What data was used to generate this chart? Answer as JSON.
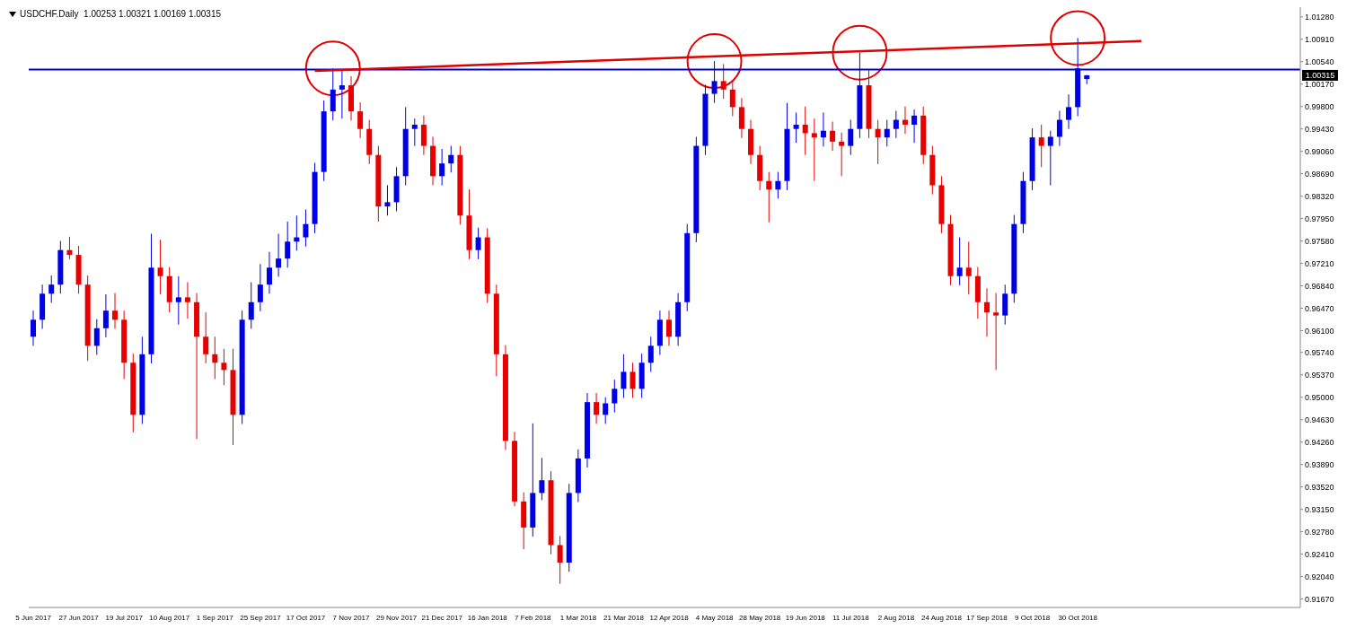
{
  "chart_data": {
    "type": "candlestick",
    "title": "USDCHF.Daily  1.00253 1.00321 1.00169 1.00315",
    "categories": [
      "5 Jun 2017",
      null,
      null,
      null,
      null,
      "27 Jun 2017",
      null,
      null,
      null,
      null,
      "19 Jul 2017",
      null,
      null,
      null,
      null,
      "10 Aug 2017",
      null,
      null,
      null,
      null,
      "1 Sep 2017",
      null,
      null,
      null,
      null,
      "25 Sep 2017",
      null,
      null,
      null,
      null,
      "17 Oct 2017",
      null,
      null,
      null,
      null,
      "7 Nov 2017",
      null,
      null,
      null,
      null,
      "29 Nov 2017",
      null,
      null,
      null,
      null,
      "21 Dec 2017",
      null,
      null,
      null,
      null,
      "16 Jan 2018",
      null,
      null,
      null,
      null,
      "7 Feb 2018",
      null,
      null,
      null,
      null,
      "1 Mar 2018",
      null,
      null,
      null,
      null,
      "21 Mar 2018",
      null,
      null,
      null,
      null,
      "12 Apr 2018",
      null,
      null,
      null,
      null,
      "4 May 2018",
      null,
      null,
      null,
      null,
      "28 May 2018",
      null,
      null,
      null,
      null,
      "19 Jun 2018",
      null,
      null,
      null,
      null,
      "11 Jul 2018",
      null,
      null,
      null,
      null,
      "2 Aug 2018",
      null,
      null,
      null,
      null,
      "24 Aug 2018",
      null,
      null,
      null,
      null,
      "17 Sep 2018",
      null,
      null,
      null,
      null,
      "9 Oct 2018",
      null,
      null,
      null,
      null,
      "30 Oct 2018",
      null,
      null,
      null,
      null,
      null,
      null,
      null,
      null,
      null,
      null,
      null,
      null,
      null,
      null,
      null,
      null,
      null,
      null,
      null,
      null,
      null,
      null,
      null,
      null
    ],
    "ohlc": [
      [
        0.96,
        0.9643,
        0.9585,
        0.9628
      ],
      [
        0.9628,
        0.9686,
        0.9613,
        0.9671
      ],
      [
        0.9671,
        0.9701,
        0.9656,
        0.9686
      ],
      [
        0.9686,
        0.9758,
        0.9671,
        0.9743
      ],
      [
        0.9743,
        0.9765,
        0.9728,
        0.9735
      ],
      [
        0.9735,
        0.975,
        0.9671,
        0.9686
      ],
      [
        0.9686,
        0.9701,
        0.956,
        0.9585
      ],
      [
        0.9585,
        0.9629,
        0.957,
        0.9614
      ],
      [
        0.9614,
        0.967,
        0.9599,
        0.9643
      ],
      [
        0.9643,
        0.9672,
        0.9613,
        0.9628
      ],
      [
        0.9628,
        0.9643,
        0.953,
        0.9557
      ],
      [
        0.9557,
        0.9572,
        0.9442,
        0.9471
      ],
      [
        0.9471,
        0.96,
        0.9456,
        0.9571
      ],
      [
        0.9571,
        0.977,
        0.9556,
        0.9714
      ],
      [
        0.9714,
        0.976,
        0.967,
        0.97
      ],
      [
        0.97,
        0.9715,
        0.964,
        0.9657
      ],
      [
        0.9657,
        0.97,
        0.962,
        0.9665
      ],
      [
        0.9665,
        0.969,
        0.963,
        0.9657
      ],
      [
        0.9657,
        0.9672,
        0.9431,
        0.96
      ],
      [
        0.96,
        0.964,
        0.9556,
        0.9571
      ],
      [
        0.9571,
        0.96,
        0.953,
        0.9557
      ],
      [
        0.9557,
        0.958,
        0.952,
        0.9545
      ],
      [
        0.9545,
        0.958,
        0.9421,
        0.9471
      ],
      [
        0.9471,
        0.9643,
        0.9456,
        0.9628
      ],
      [
        0.9628,
        0.969,
        0.9613,
        0.9657
      ],
      [
        0.9657,
        0.972,
        0.9642,
        0.9686
      ],
      [
        0.9686,
        0.974,
        0.9671,
        0.9714
      ],
      [
        0.9714,
        0.977,
        0.9699,
        0.9729
      ],
      [
        0.9729,
        0.979,
        0.9714,
        0.9757
      ],
      [
        0.9757,
        0.98,
        0.9742,
        0.9764
      ],
      [
        0.9764,
        0.981,
        0.9749,
        0.9786
      ],
      [
        0.9786,
        0.9887,
        0.9771,
        0.9872
      ],
      [
        0.9872,
        0.999,
        0.9857,
        0.9972
      ],
      [
        0.9972,
        1.0043,
        0.9957,
        1.0008
      ],
      [
        1.0008,
        1.0041,
        0.996,
        1.0015
      ],
      [
        1.0015,
        1.003,
        0.9957,
        0.9972
      ],
      [
        0.9972,
        0.9987,
        0.9928,
        0.9943
      ],
      [
        0.9943,
        0.9958,
        0.9885,
        0.99
      ],
      [
        0.99,
        0.9915,
        0.979,
        0.9815
      ],
      [
        0.9815,
        0.985,
        0.98,
        0.9822
      ],
      [
        0.9822,
        0.988,
        0.9807,
        0.9865
      ],
      [
        0.9865,
        0.9979,
        0.985,
        0.9943
      ],
      [
        0.9943,
        0.996,
        0.9915,
        0.995
      ],
      [
        0.995,
        0.9965,
        0.99,
        0.9915
      ],
      [
        0.9915,
        0.993,
        0.985,
        0.9865
      ],
      [
        0.9865,
        0.991,
        0.985,
        0.9886
      ],
      [
        0.9886,
        0.9915,
        0.9871,
        0.99
      ],
      [
        0.99,
        0.9915,
        0.9785,
        0.98
      ],
      [
        0.98,
        0.9843,
        0.9728,
        0.9743
      ],
      [
        0.9743,
        0.978,
        0.9728,
        0.9764
      ],
      [
        0.9764,
        0.9779,
        0.9656,
        0.9671
      ],
      [
        0.9671,
        0.9686,
        0.9535,
        0.9571
      ],
      [
        0.9571,
        0.9586,
        0.9413,
        0.9428
      ],
      [
        0.9428,
        0.9443,
        0.932,
        0.9328
      ],
      [
        0.9328,
        0.9343,
        0.9249,
        0.9285
      ],
      [
        0.9285,
        0.9457,
        0.927,
        0.9342
      ],
      [
        0.9342,
        0.94,
        0.933,
        0.9363
      ],
      [
        0.9363,
        0.9378,
        0.9241,
        0.9256
      ],
      [
        0.9256,
        0.9271,
        0.9192,
        0.9227
      ],
      [
        0.9227,
        0.9357,
        0.9212,
        0.9342
      ],
      [
        0.9342,
        0.9414,
        0.9327,
        0.9399
      ],
      [
        0.9399,
        0.9507,
        0.9384,
        0.9492
      ],
      [
        0.9492,
        0.9507,
        0.9456,
        0.9471
      ],
      [
        0.9471,
        0.95,
        0.9456,
        0.949
      ],
      [
        0.949,
        0.9529,
        0.9475,
        0.9514
      ],
      [
        0.9514,
        0.9571,
        0.9499,
        0.9542
      ],
      [
        0.9542,
        0.9557,
        0.9499,
        0.9514
      ],
      [
        0.9514,
        0.9572,
        0.9499,
        0.9557
      ],
      [
        0.9557,
        0.96,
        0.9542,
        0.9585
      ],
      [
        0.9585,
        0.9643,
        0.957,
        0.9628
      ],
      [
        0.9628,
        0.9643,
        0.9585,
        0.96
      ],
      [
        0.96,
        0.9672,
        0.9585,
        0.9657
      ],
      [
        0.9657,
        0.9786,
        0.9642,
        0.9771
      ],
      [
        0.9771,
        0.993,
        0.9756,
        0.9915
      ],
      [
        0.9915,
        1.0016,
        0.99,
        1.0001
      ],
      [
        1.0001,
        1.0055,
        0.9986,
        1.0022
      ],
      [
        1.0022,
        1.005,
        0.9993,
        1.0008
      ],
      [
        1.0008,
        1.0023,
        0.9964,
        0.9979
      ],
      [
        0.9979,
        0.9994,
        0.9928,
        0.9943
      ],
      [
        0.9943,
        0.9958,
        0.9885,
        0.99
      ],
      [
        0.99,
        0.9915,
        0.9842,
        0.9857
      ],
      [
        0.9857,
        0.9872,
        0.9789,
        0.9843
      ],
      [
        0.9843,
        0.9872,
        0.9828,
        0.9857
      ],
      [
        0.9857,
        0.9986,
        0.9842,
        0.9943
      ],
      [
        0.9943,
        0.997,
        0.992,
        0.995
      ],
      [
        0.995,
        0.998,
        0.99,
        0.9936
      ],
      [
        0.9936,
        0.996,
        0.9857,
        0.9929
      ],
      [
        0.9929,
        0.997,
        0.9914,
        0.994
      ],
      [
        0.994,
        0.9955,
        0.9907,
        0.9922
      ],
      [
        0.9922,
        0.9937,
        0.9865,
        0.9915
      ],
      [
        0.9915,
        0.9958,
        0.99,
        0.9943
      ],
      [
        0.9943,
        1.0069,
        0.9928,
        1.0015
      ],
      [
        1.0015,
        1.004,
        0.9928,
        0.9943
      ],
      [
        0.9943,
        0.9958,
        0.9885,
        0.9929
      ],
      [
        0.9929,
        0.9958,
        0.9914,
        0.9943
      ],
      [
        0.9943,
        0.9973,
        0.9928,
        0.9958
      ],
      [
        0.9958,
        0.998,
        0.9935,
        0.995
      ],
      [
        0.995,
        0.9975,
        0.992,
        0.9965
      ],
      [
        0.9965,
        0.998,
        0.9885,
        0.99
      ],
      [
        0.99,
        0.9915,
        0.9835,
        0.985
      ],
      [
        0.985,
        0.9865,
        0.9771,
        0.9786
      ],
      [
        0.9786,
        0.9801,
        0.9685,
        0.97
      ],
      [
        0.97,
        0.9764,
        0.9685,
        0.9714
      ],
      [
        0.9714,
        0.9757,
        0.967,
        0.97
      ],
      [
        0.97,
        0.9715,
        0.963,
        0.9657
      ],
      [
        0.9657,
        0.968,
        0.96,
        0.964
      ],
      [
        0.964,
        0.9672,
        0.9545,
        0.9635
      ],
      [
        0.9635,
        0.9686,
        0.962,
        0.9671
      ],
      [
        0.9671,
        0.9801,
        0.9656,
        0.9786
      ],
      [
        0.9786,
        0.9872,
        0.9771,
        0.9857
      ],
      [
        0.9857,
        0.9944,
        0.9842,
        0.9929
      ],
      [
        0.9929,
        0.995,
        0.988,
        0.9915
      ],
      [
        0.9915,
        0.994,
        0.985,
        0.993
      ],
      [
        0.993,
        0.9973,
        0.9915,
        0.9958
      ],
      [
        0.9958,
        1.0,
        0.9943,
        0.9979
      ],
      [
        0.9979,
        1.0093,
        0.9964,
        1.0043
      ],
      [
        1.00253,
        1.00321,
        1.00169,
        1.00315
      ],
      null,
      null,
      null,
      null,
      null,
      null,
      null,
      null,
      null,
      null,
      null,
      null,
      null,
      null,
      null,
      null,
      null,
      null,
      null,
      null,
      null,
      null,
      null
    ],
    "colors": [
      "#0000e6",
      "#0000e6",
      "#0000e6",
      "#0000e6",
      "#e60000",
      "#e60000",
      "#e60000",
      "#0000e6",
      "#0000e6",
      "#e60000",
      "#e60000",
      "#e60000",
      "#0000e6",
      "#0000e6",
      "#e60000",
      "#e60000",
      "#0000e6",
      "#e60000",
      "#e60000",
      "#e60000",
      "#e60000",
      "#e60000",
      "#e60000",
      "#0000e6",
      "#0000e6",
      "#0000e6",
      "#0000e6",
      "#0000e6",
      "#0000e6",
      "#0000e6",
      "#0000e6",
      "#0000e6",
      "#0000e6",
      "#0000e6",
      "#0000e6",
      "#e60000",
      "#e60000",
      "#e60000",
      "#e60000",
      "#0000e6",
      "#0000e6",
      "#0000e6",
      "#0000e6",
      "#e60000",
      "#e60000",
      "#0000e6",
      "#0000e6",
      "#e60000",
      "#e60000",
      "#0000e6",
      "#e60000",
      "#e60000",
      "#e60000",
      "#e60000",
      "#e60000",
      "#0000e6",
      "#0000e6",
      "#e60000",
      "#e60000",
      "#0000e6",
      "#0000e6",
      "#0000e6",
      "#e60000",
      "#0000e6",
      "#0000e6",
      "#0000e6",
      "#e60000",
      "#0000e6",
      "#0000e6",
      "#0000e6",
      "#e60000",
      "#0000e6",
      "#0000e6",
      "#0000e6",
      "#0000e6",
      "#0000e6",
      "#e60000",
      "#e60000",
      "#e60000",
      "#e60000",
      "#e60000",
      "#e60000",
      "#0000e6",
      "#0000e6",
      "#0000e6",
      "#e60000",
      "#e60000",
      "#0000e6",
      "#e60000",
      "#e60000",
      "#0000e6",
      "#0000e6",
      "#e60000",
      "#e60000",
      "#0000e6",
      "#0000e6",
      "#e60000",
      "#0000e6",
      "#e60000",
      "#e60000",
      "#e60000",
      "#e60000",
      "#0000e6",
      "#e60000",
      "#e60000",
      "#e60000",
      "#e60000",
      "#0000e6",
      "#0000e6",
      "#0000e6",
      "#0000e6",
      "#e60000",
      "#0000e6",
      "#0000e6",
      "#0000e6",
      "#0000e6",
      "#0000e6",
      null,
      null,
      null,
      null,
      null,
      null,
      null,
      null,
      null,
      null,
      null,
      null,
      null,
      null,
      null,
      null,
      null,
      null,
      null,
      null,
      null,
      null,
      null
    ],
    "series": [
      {
        "type": "line",
        "color": "#e00000",
        "values": [
          null,
          null,
          null,
          null,
          null,
          null,
          null,
          null,
          null,
          null,
          null,
          null,
          null,
          null,
          null,
          null,
          null,
          null,
          null,
          null,
          null,
          null,
          null,
          null,
          null,
          null,
          null,
          null,
          null,
          null,
          null,
          1.0039,
          null,
          null,
          null,
          null,
          null,
          null,
          null,
          null,
          null,
          null,
          null,
          null,
          null,
          null,
          null,
          null,
          null,
          null,
          null,
          null,
          null,
          null,
          null,
          null,
          null,
          null,
          null,
          null,
          null,
          null,
          null,
          null,
          null,
          null,
          null,
          null,
          null,
          null,
          null,
          null,
          null,
          null,
          null,
          null,
          null,
          null,
          null,
          null,
          null,
          null,
          null,
          null,
          null,
          null,
          null,
          null,
          null,
          null,
          null,
          null,
          null,
          null,
          null,
          null,
          null,
          null,
          null,
          null,
          null,
          null,
          null,
          null,
          null,
          null,
          null,
          null,
          null,
          null,
          null,
          null,
          null,
          null,
          null,
          null,
          null,
          null,
          null,
          null,
          null,
          null,
          1.0088,
          null,
          null,
          null,
          null,
          null,
          null,
          null,
          null,
          null,
          null,
          null,
          null,
          null,
          null,
          null,
          null,
          null
        ]
      }
    ],
    "ref_lines": [
      {
        "axis": "y",
        "value": 1.0041,
        "color": "#0000cc",
        "line_style": "solid"
      }
    ],
    "annotations": [
      {
        "text": "1.00315",
        "y": 1.00315
      }
    ],
    "ylim": [
      0.9153,
      1.0144
    ],
    "yticks": [
      {
        "value": 1.0128,
        "label": "1.01280"
      },
      {
        "value": 1.0091,
        "label": "1.00910"
      },
      {
        "value": 1.0054,
        "label": "1.00540"
      },
      {
        "value": 1.0017,
        "label": "1.00170"
      },
      {
        "value": 0.998,
        "label": "0.99800"
      },
      {
        "value": 0.9943,
        "label": "0.99430"
      },
      {
        "value": 0.9906,
        "label": "0.99060"
      },
      {
        "value": 0.9869,
        "label": "0.98690"
      },
      {
        "value": 0.9832,
        "label": "0.98320"
      },
      {
        "value": 0.9795,
        "label": "0.97950"
      },
      {
        "value": 0.9758,
        "label": "0.97580"
      },
      {
        "value": 0.9721,
        "label": "0.97210"
      },
      {
        "value": 0.9684,
        "label": "0.96840"
      },
      {
        "value": 0.9647,
        "label": "0.96470"
      },
      {
        "value": 0.961,
        "label": "0.96100"
      },
      {
        "value": 0.9574,
        "label": "0.95740"
      },
      {
        "value": 0.9537,
        "label": "0.95370"
      },
      {
        "value": 0.95,
        "label": "0.95000"
      },
      {
        "value": 0.9463,
        "label": "0.94630"
      },
      {
        "value": 0.9426,
        "label": "0.94260"
      },
      {
        "value": 0.9389,
        "label": "0.93890"
      },
      {
        "value": 0.9352,
        "label": "0.93520"
      },
      {
        "value": 0.9315,
        "label": "0.93150"
      },
      {
        "value": 0.9278,
        "label": "0.92780"
      },
      {
        "value": 0.9241,
        "label": "0.92410"
      },
      {
        "value": 0.9204,
        "label": "0.92040"
      },
      {
        "value": 0.9167,
        "label": "0.91670"
      }
    ]
  }
}
